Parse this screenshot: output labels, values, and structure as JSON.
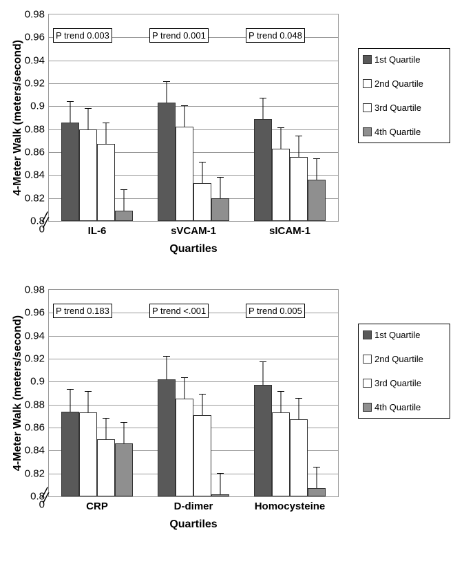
{
  "legend": [
    {
      "label": "1st  Quartile",
      "fill": "#595959",
      "hatch": false
    },
    {
      "label": "2nd  Quartile",
      "fill": "#ffffff",
      "hatch": false
    },
    {
      "label": "3rd  Quartile",
      "fill": "#ffffff",
      "hatch": true
    },
    {
      "label": "4th  Quartile",
      "fill": "#8f8f8f",
      "hatch": false
    }
  ],
  "colors": {
    "grid": "#999999",
    "bar_border": "#333333",
    "error": "#000000",
    "text": "#000000",
    "background": "#ffffff"
  },
  "axes": {
    "ylabel": "4-Meter Walk (meters/second)",
    "xlabel": "Quartiles",
    "ymin": 0.8,
    "ymax": 0.98,
    "ytick_step": 0.02,
    "base_label": "0"
  },
  "charts": [
    {
      "groups": [
        {
          "name": "IL-6",
          "p_trend": "P trend 0.003",
          "bars": [
            {
              "value": 0.886,
              "err": 0.018
            },
            {
              "value": 0.88,
              "err": 0.018
            },
            {
              "value": 0.867,
              "err": 0.018
            },
            {
              "value": 0.809,
              "err": 0.018
            }
          ]
        },
        {
          "name": "sVCAM-1",
          "p_trend": "P trend 0.001",
          "bars": [
            {
              "value": 0.903,
              "err": 0.018
            },
            {
              "value": 0.882,
              "err": 0.018
            },
            {
              "value": 0.833,
              "err": 0.018
            },
            {
              "value": 0.82,
              "err": 0.018
            }
          ]
        },
        {
          "name": "sICAM-1",
          "p_trend": "P trend 0.048",
          "bars": [
            {
              "value": 0.889,
              "err": 0.018
            },
            {
              "value": 0.863,
              "err": 0.018
            },
            {
              "value": 0.856,
              "err": 0.018
            },
            {
              "value": 0.836,
              "err": 0.018
            }
          ]
        }
      ]
    },
    {
      "groups": [
        {
          "name": "CRP",
          "p_trend": "P trend 0.183",
          "bars": [
            {
              "value": 0.874,
              "err": 0.019
            },
            {
              "value": 0.873,
              "err": 0.018
            },
            {
              "value": 0.85,
              "err": 0.018
            },
            {
              "value": 0.846,
              "err": 0.018
            }
          ]
        },
        {
          "name": "D-dimer",
          "p_trend": "P trend <.001",
          "bars": [
            {
              "value": 0.902,
              "err": 0.02
            },
            {
              "value": 0.885,
              "err": 0.018
            },
            {
              "value": 0.871,
              "err": 0.018
            },
            {
              "value": 0.802,
              "err": 0.018
            }
          ]
        },
        {
          "name": "Homocysteine",
          "p_trend": "P trend 0.005",
          "bars": [
            {
              "value": 0.897,
              "err": 0.02
            },
            {
              "value": 0.873,
              "err": 0.018
            },
            {
              "value": 0.867,
              "err": 0.018
            },
            {
              "value": 0.807,
              "err": 0.018
            }
          ]
        }
      ]
    }
  ]
}
